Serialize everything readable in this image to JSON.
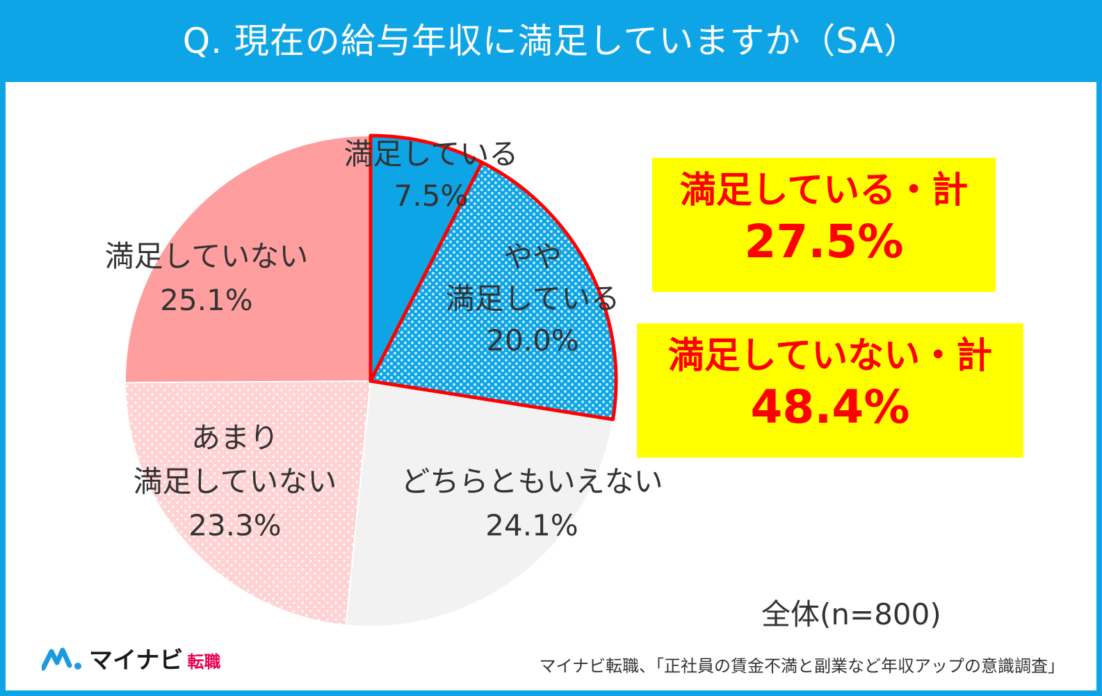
{
  "header": {
    "title": "Q. 現在の給与年収に満足していますか（SA）"
  },
  "chart_data": {
    "type": "pie",
    "title": "Q. 現在の給与年収に満足していますか（SA）",
    "start_angle_deg": 0,
    "direction": "clockwise",
    "slices": [
      {
        "label": "満足している",
        "value": 7.5,
        "value_label": "7.5%",
        "color": "#0ea5e6",
        "pattern": "solid"
      },
      {
        "label_lines": [
          "やや",
          "満足している"
        ],
        "label": "やや満足している",
        "value": 20.0,
        "value_label": "20.0%",
        "color": "#7fd2f5",
        "pattern": "dotted"
      },
      {
        "label": "どちらともいえない",
        "value": 24.1,
        "value_label": "24.1%",
        "color": "#f2f2f2",
        "pattern": "solid"
      },
      {
        "label_lines": [
          "あまり",
          "満足していない"
        ],
        "label": "あまり満足していない",
        "value": 23.3,
        "value_label": "23.3%",
        "color": "#ffc9c9",
        "pattern": "dotted"
      },
      {
        "label": "満足していない",
        "value": 25.1,
        "value_label": "25.1%",
        "color": "#ff9999",
        "pattern": "solid"
      }
    ],
    "highlight": {
      "slices": [
        0,
        1
      ],
      "outline_color": "#ff0000"
    },
    "annotations": [
      {
        "text": "満足している・計",
        "value_label": "27.5%"
      },
      {
        "text": "満足していない・計",
        "value_label": "48.4%"
      }
    ],
    "sample_size": "全体(n=800)"
  },
  "footer": {
    "logo_name": "マイナビ",
    "logo_sub": "転職",
    "source": "マイナビ転職、「正社員の賃金不満と副業など年収アップの意識調査」"
  },
  "colors": {
    "brand": "#0ea5e6",
    "callout_bg": "#ffff00",
    "callout_text": "#ff0000"
  }
}
